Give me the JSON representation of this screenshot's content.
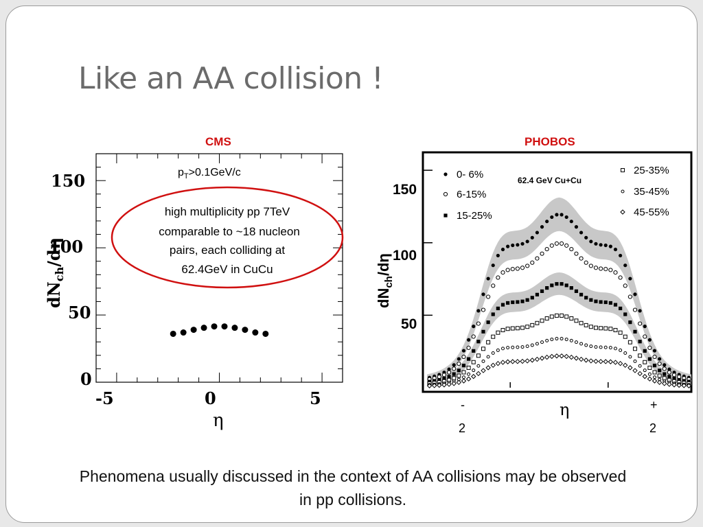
{
  "slide": {
    "title": "Like an AA collision !",
    "footnote": "Phenomena usually discussed in the context of AA collisions may be observed in pp collisions."
  },
  "colors": {
    "accent_red": "#d01010",
    "band_gray": "#c8c8c8",
    "title_gray": "#6b6b6b"
  },
  "chart_data": [
    {
      "type": "scatter",
      "title": "CMS",
      "xlabel": "η",
      "ylabel": "dNch/dη",
      "xlim": [
        -6,
        6
      ],
      "ylim": [
        0,
        170
      ],
      "xticks": [
        "-5",
        "0",
        "5"
      ],
      "yticks": [
        "0",
        "50",
        "100",
        "150"
      ],
      "cut_label": "pT>0.1GeV/c",
      "annotation": "high multiplicity pp 7TeV comparable to ~18 nucleon pairs, each colliding at 62.4GeV in CuCu",
      "series": [
        {
          "x": [
            -2.25,
            -1.75,
            -1.25,
            -0.75,
            -0.25,
            0.25,
            0.75,
            1.25,
            1.75,
            2.25
          ],
          "y": [
            36,
            37,
            39,
            40.5,
            41.5,
            41.5,
            40.5,
            39,
            37,
            36
          ]
        }
      ]
    },
    {
      "type": "scatter",
      "title": "PHOBOS",
      "xlabel": "η",
      "ylabel": "dNch/dη",
      "system": "62.4 GeV Cu+Cu",
      "xlim": [
        -5.4,
        5.4
      ],
      "ylim": [
        0,
        160
      ],
      "yticks": [
        "50",
        "100",
        "150"
      ],
      "xtick_labels": {
        "minus": "-2",
        "plus": "+2"
      },
      "series": [
        {
          "name": "0- 6%",
          "marker": "filled-circle",
          "plateau": 120
        },
        {
          "name": "6-15%",
          "marker": "open-circle",
          "plateau": 100
        },
        {
          "name": "15-25%",
          "marker": "filled-square",
          "plateau": 72
        },
        {
          "name": "25-35%",
          "marker": "open-square",
          "plateau": 50
        },
        {
          "name": "35-45%",
          "marker": "small-open-circle",
          "plateau": 34
        },
        {
          "name": "45-55%",
          "marker": "open-diamond",
          "plateau": 22
        }
      ]
    }
  ]
}
